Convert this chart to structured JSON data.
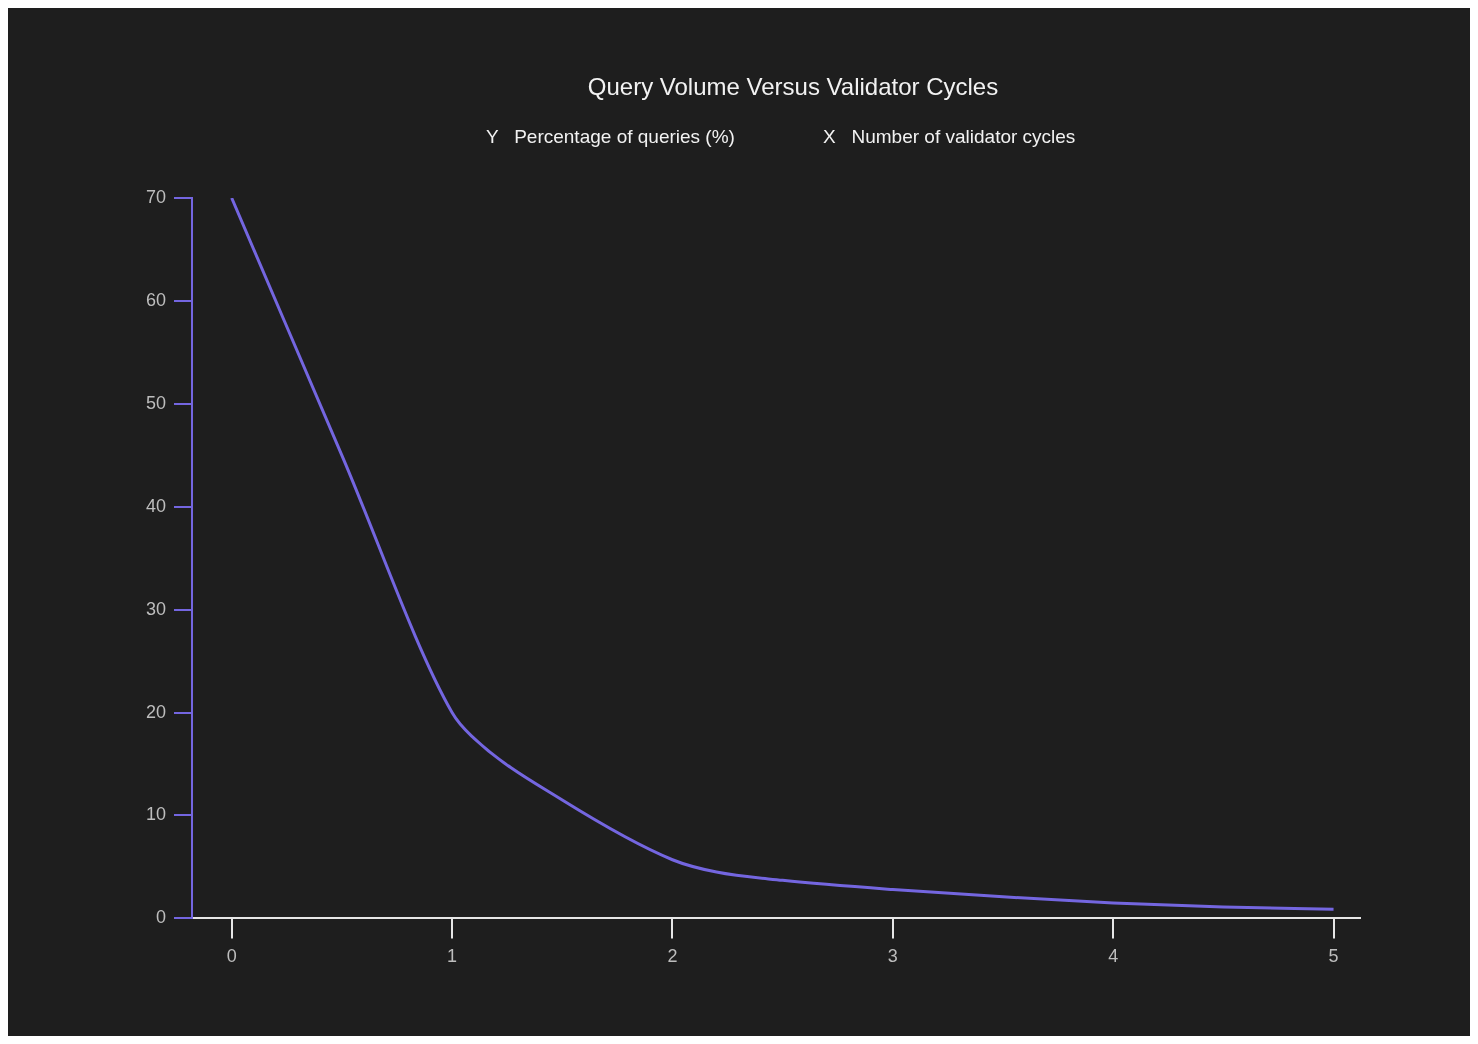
{
  "chart_data": {
    "type": "line",
    "title": "Query Volume Versus Validator Cycles",
    "ylabel": "Y   Percentage of queries (%)",
    "xlabel": "X   Number of validator cycles",
    "x": [
      0,
      0.5,
      1,
      1.1,
      1.5,
      2,
      2.2,
      2.5,
      3,
      3.5,
      4,
      4.5,
      5
    ],
    "series": [
      {
        "color": "#7466e0",
        "values": [
          70,
          45,
          20,
          17.5,
          11.5,
          5.7,
          4.5,
          3.7,
          2.8,
          2.1,
          1.5,
          1.1,
          0.9
        ]
      }
    ],
    "xlim": [
      -0.18,
      5.12
    ],
    "xticks": [
      0,
      1,
      2,
      3,
      4,
      5
    ],
    "ylim": [
      0,
      70
    ],
    "yticks": [
      0,
      10,
      20,
      30,
      40,
      50,
      60,
      70
    ],
    "grid": false,
    "legend": false,
    "marker": "none",
    "line_style": "solid"
  }
}
